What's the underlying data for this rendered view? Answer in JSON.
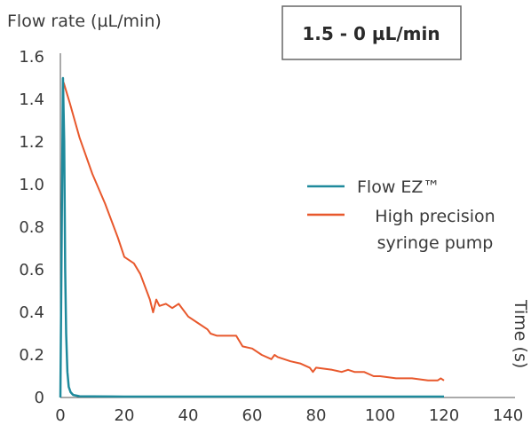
{
  "chart_data": {
    "type": "line",
    "ylabel": "Flow rate (µL/min)",
    "xlabel": "Time (s)",
    "annotation": "1.5 - 0 µL/min",
    "xlim": [
      0,
      140
    ],
    "ylim": [
      0,
      1.6
    ],
    "x_ticks": [
      0,
      20,
      40,
      60,
      80,
      100,
      120,
      140
    ],
    "x_tick_labels": [
      "0",
      "20",
      "40",
      "60",
      "80",
      "100",
      "120",
      "140"
    ],
    "y_ticks": [
      0,
      0.2,
      0.4,
      0.6,
      0.8,
      1.0,
      1.2,
      1.4,
      1.6
    ],
    "y_tick_labels": [
      "0",
      "0.2",
      "0.4",
      "0.6",
      "0.8",
      "1.0",
      "1.2",
      "1.4",
      "1.6"
    ],
    "grid": false,
    "legend_position": "right",
    "series": [
      {
        "name": "Flow EZ™",
        "color": "#1f8a9c",
        "x": [
          0,
          0.8,
          1.2,
          1.5,
          1.8,
          2.2,
          2.6,
          3.2,
          4,
          6,
          10,
          20,
          40,
          60,
          80,
          100,
          120
        ],
        "y": [
          0,
          1.5,
          1.2,
          0.6,
          0.3,
          0.12,
          0.05,
          0.025,
          0.012,
          0.006,
          0.005,
          0.004,
          0.004,
          0.004,
          0.004,
          0.004,
          0.004
        ]
      },
      {
        "name": "High precision syringe pump",
        "color": "#e8582c",
        "x": [
          1,
          3,
          6,
          10,
          14,
          18,
          20,
          23,
          25,
          27,
          28,
          29,
          30,
          31,
          33,
          35,
          37,
          40,
          43,
          46,
          47,
          49,
          55,
          57,
          60,
          63,
          66,
          67,
          68,
          70,
          72,
          75,
          78,
          79,
          80,
          85,
          88,
          90,
          92,
          95,
          98,
          100,
          105,
          110,
          115,
          118,
          119,
          120
        ],
        "y": [
          1.48,
          1.38,
          1.22,
          1.05,
          0.91,
          0.75,
          0.66,
          0.63,
          0.58,
          0.5,
          0.46,
          0.4,
          0.46,
          0.43,
          0.44,
          0.42,
          0.44,
          0.38,
          0.35,
          0.32,
          0.3,
          0.29,
          0.29,
          0.24,
          0.23,
          0.2,
          0.18,
          0.2,
          0.19,
          0.18,
          0.17,
          0.16,
          0.14,
          0.12,
          0.14,
          0.13,
          0.12,
          0.13,
          0.12,
          0.12,
          0.1,
          0.1,
          0.09,
          0.09,
          0.08,
          0.08,
          0.09,
          0.08
        ]
      }
    ]
  }
}
